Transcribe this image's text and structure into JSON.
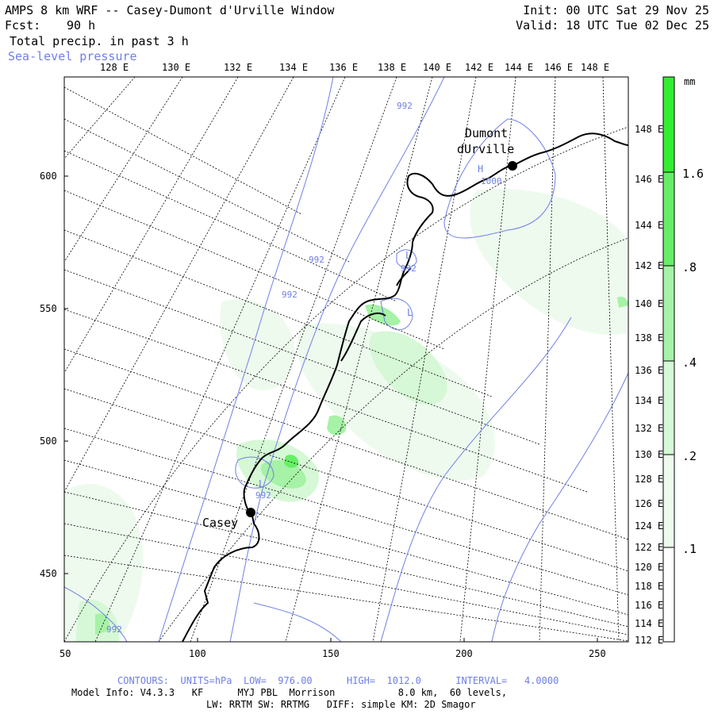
{
  "header": {
    "title": "AMPS 8 km WRF -- Casey-Dumont d'Urville Window",
    "fcst_label": "Fcst:",
    "fcst_value": "90 h",
    "field": "Total precip. in past 3 h",
    "overlay": "Sea-level pressure",
    "init": "Init: 00 UTC Sat 29 Nov 25",
    "valid": "Valid: 18 UTC Tue 02 Dec 25"
  },
  "map": {
    "top_lon_labels": [
      "128 E",
      "130 E",
      "132 E",
      "134 E",
      "136 E",
      "138 E",
      "140 E",
      "142 E",
      "144 E",
      "146 E",
      "148 E"
    ],
    "right_lon_labels": [
      "148 E",
      "146 E",
      "144 E",
      "142 E",
      "140 E",
      "138 E",
      "136 E",
      "134 E",
      "132 E",
      "130 E",
      "128 E",
      "126 E",
      "124 E",
      "122 E",
      "120 E",
      "118 E",
      "116 E",
      "114 E",
      "112 E"
    ],
    "left_axis_labels": [
      "600",
      "550",
      "500",
      "450"
    ],
    "bottom_axis_labels": [
      "50",
      "100",
      "150",
      "200",
      "250"
    ],
    "stations": [
      {
        "name_line1": "Dumont",
        "name_line2": "dUrville"
      },
      {
        "name_line1": "Casey",
        "name_line2": ""
      }
    ],
    "contour_labels": [
      "992",
      "992",
      "992",
      "992",
      "992",
      "992",
      "1000"
    ],
    "pressure_centers": [
      "H",
      "L",
      "L",
      "L"
    ]
  },
  "colorbar": {
    "unit": "mm",
    "labels": [
      "1.6",
      ".8",
      ".4",
      ".2",
      ".1"
    ],
    "colors": [
      "#33ee33",
      "#66ee66",
      "#a6f2a6",
      "#d6f8d6",
      "#eefaee"
    ]
  },
  "footer": {
    "contours": "CONTOURS:  UNITS=hPa  LOW=  976.00      HIGH=  1012.0      INTERVAL=   4.0000",
    "model_line1": "Model Info: V4.3.3   KF      MYJ PBL  Morrison           8.0 km,  60 levels,",
    "model_line2": "LW: RRTM SW: RRTMG   DIFF: simple KM: 2D Smagor"
  },
  "colors": {
    "contour": "#6f7fe6",
    "coast": "#000000",
    "grid": "#000000"
  }
}
